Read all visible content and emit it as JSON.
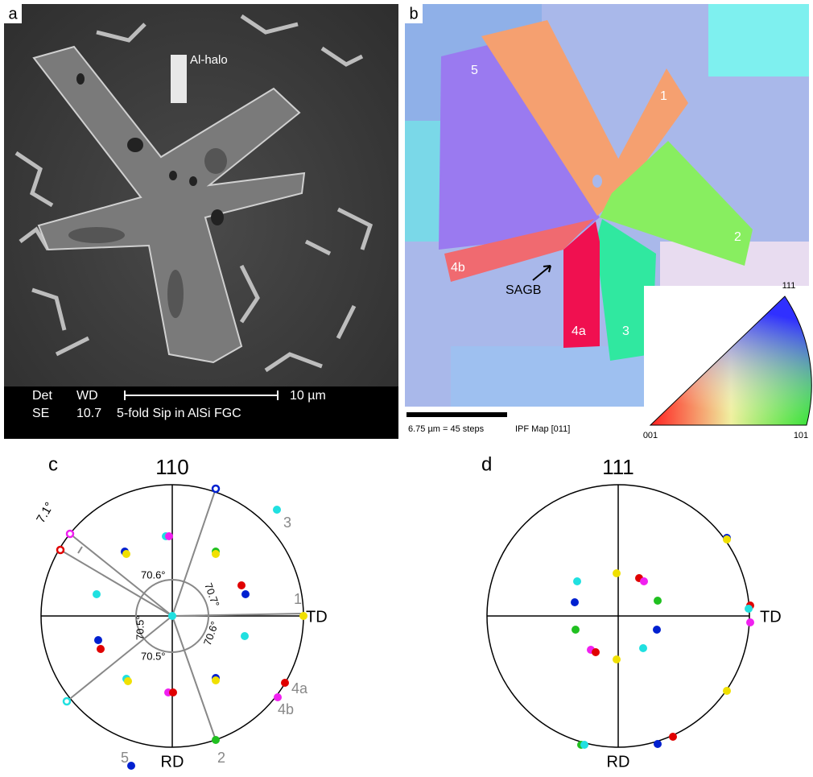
{
  "panel_a": {
    "label": "a",
    "annotation": "Al-halo",
    "info_bar": {
      "detector_label": "Det",
      "wd_label": "WD",
      "scale": "10 µm",
      "detector": "SE",
      "wd": "10.7",
      "caption": "5-fold Sip in AlSi FGC"
    }
  },
  "panel_b": {
    "label": "b",
    "arm_labels": [
      "5",
      "1",
      "2",
      "3",
      "4a",
      "4b"
    ],
    "boundary": "SAGB",
    "scale_text": "6.75 µm = 45 steps",
    "map_name": "IPF Map [011]",
    "ipf_key": {
      "top": "111",
      "left": "001",
      "right": "101"
    }
  },
  "panel_c": {
    "label": "c",
    "pole": "110",
    "angles": [
      "7.1°",
      "70.6°",
      "70.7°",
      "70.5°",
      "70.6°",
      "70.5°"
    ],
    "arm_labels": [
      "3",
      "1",
      "4a",
      "4b",
      "2",
      "5"
    ],
    "td": "TD",
    "rd": "RD"
  },
  "panel_d": {
    "label": "d",
    "pole": "111",
    "td": "TD",
    "rd": "RD"
  }
}
